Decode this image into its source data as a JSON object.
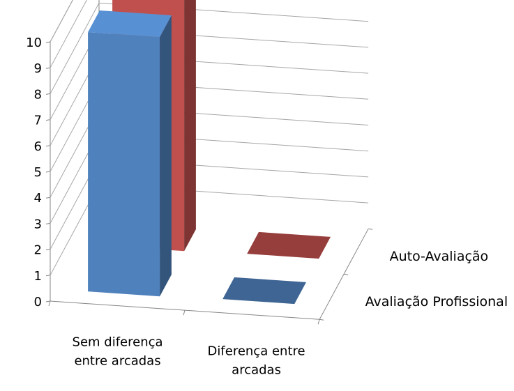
{
  "chart_data": {
    "type": "bar",
    "chart_style": "3d-column",
    "categories": [
      "Sem diferença entre arcadas",
      "Diferença entre arcadas"
    ],
    "category_label_lines": [
      [
        "Sem diferença",
        "entre arcadas"
      ],
      [
        "Diferença entre",
        "arcadas"
      ]
    ],
    "series": [
      {
        "name": "Avaliação Profissional",
        "values": [
          10,
          0
        ],
        "color": "#4f81bd"
      },
      {
        "name": "Auto-Avaliação",
        "values": [
          10,
          0
        ],
        "color": "#c0504d"
      }
    ],
    "y_ticks": [
      "0",
      "1",
      "2",
      "3",
      "4",
      "5",
      "6",
      "7",
      "8",
      "9",
      "10"
    ],
    "ylim": [
      0,
      10
    ],
    "grid": true,
    "title": "",
    "xlabel": "",
    "ylabel": ""
  }
}
